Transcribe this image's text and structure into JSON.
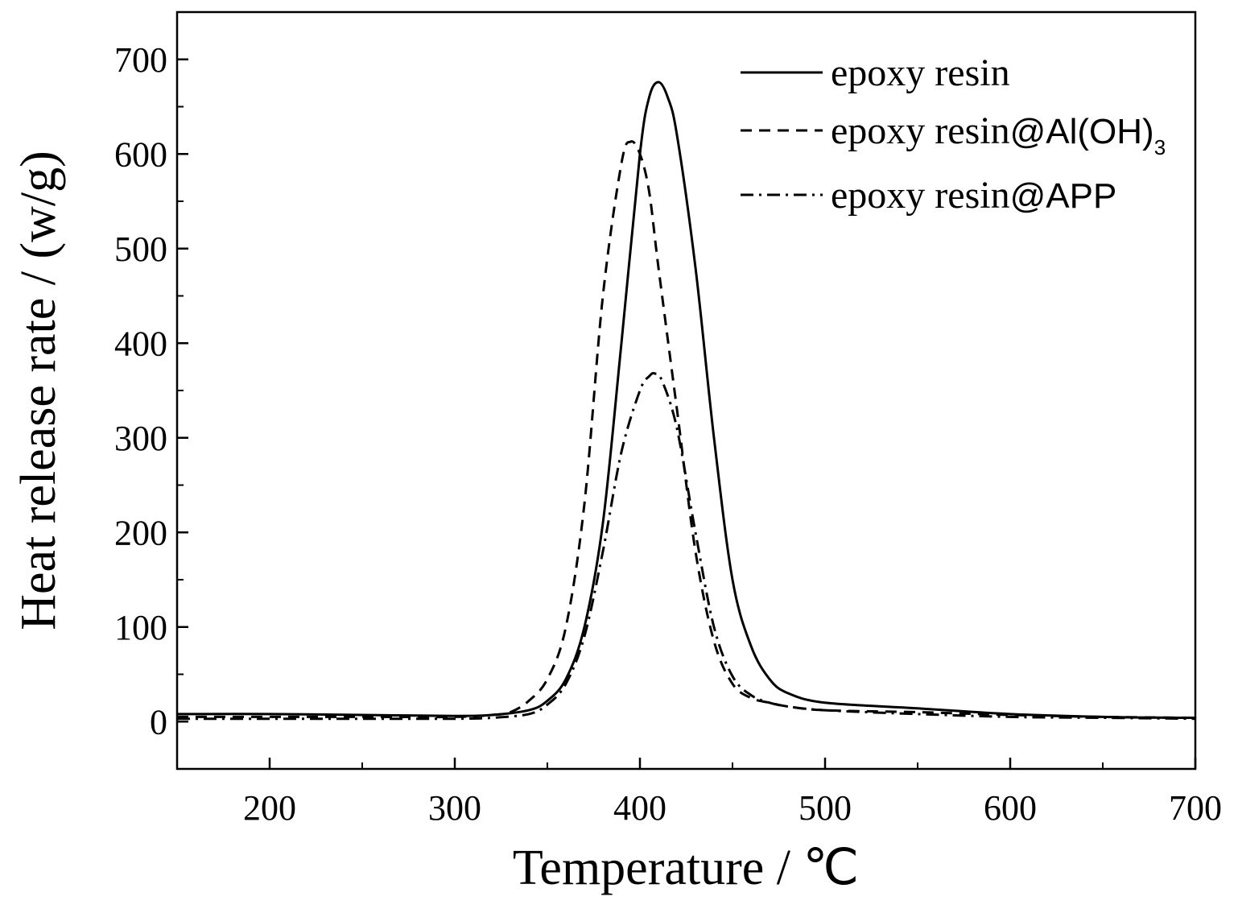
{
  "chart_data": {
    "type": "line",
    "xlabel": "Temperature / ℃",
    "ylabel": "Heat release rate / (w/g)",
    "xlim": [
      150,
      700
    ],
    "ylim": [
      -50,
      750
    ],
    "xticks": [
      200,
      300,
      400,
      500,
      600,
      700
    ],
    "yticks": [
      0,
      100,
      200,
      300,
      400,
      500,
      600,
      700
    ],
    "grid": false,
    "legend_position": "top-right",
    "series": [
      {
        "name": "epoxy resin",
        "legend_main": "epoxy resin",
        "legend_suffix": "",
        "legend_sub": "",
        "dash": "solid",
        "color": "#000000",
        "x": [
          150,
          200,
          250,
          300,
          320,
          340,
          350,
          360,
          370,
          380,
          390,
          400,
          405,
          410,
          415,
          420,
          430,
          440,
          450,
          460,
          470,
          480,
          500,
          550,
          600,
          650,
          700
        ],
        "y": [
          8,
          8,
          7,
          6,
          7,
          12,
          22,
          45,
          100,
          210,
          400,
          600,
          660,
          676,
          660,
          620,
          480,
          300,
          150,
          80,
          45,
          30,
          20,
          14,
          8,
          5,
          4
        ]
      },
      {
        "name": "epoxy resin@Al(OH)3",
        "legend_main": "epoxy resin",
        "legend_suffix": "@Al(OH)",
        "legend_sub": "3",
        "dash": "dashed",
        "color": "#000000",
        "x": [
          150,
          200,
          250,
          300,
          320,
          330,
          340,
          350,
          360,
          370,
          380,
          390,
          395,
          400,
          405,
          410,
          420,
          430,
          440,
          450,
          460,
          470,
          480,
          500,
          550,
          600,
          650,
          700
        ],
        "y": [
          5,
          5,
          5,
          5,
          7,
          10,
          22,
          45,
          100,
          230,
          450,
          590,
          613,
          600,
          560,
          480,
          330,
          180,
          85,
          40,
          25,
          20,
          16,
          12,
          10,
          7,
          5,
          4
        ]
      },
      {
        "name": "epoxy resin@APP",
        "legend_main": "epoxy resin",
        "legend_suffix": "@APP",
        "legend_sub": "",
        "dash": "dashdot",
        "color": "#000000",
        "x": [
          150,
          200,
          250,
          300,
          320,
          340,
          350,
          360,
          370,
          380,
          390,
          400,
          405,
          408,
          412,
          420,
          430,
          440,
          450,
          460,
          470,
          480,
          500,
          550,
          600,
          650,
          700
        ],
        "y": [
          3,
          3,
          3,
          3,
          4,
          8,
          18,
          40,
          90,
          180,
          285,
          350,
          365,
          368,
          360,
          310,
          200,
          100,
          48,
          28,
          20,
          16,
          12,
          8,
          5,
          4,
          3
        ]
      }
    ]
  }
}
